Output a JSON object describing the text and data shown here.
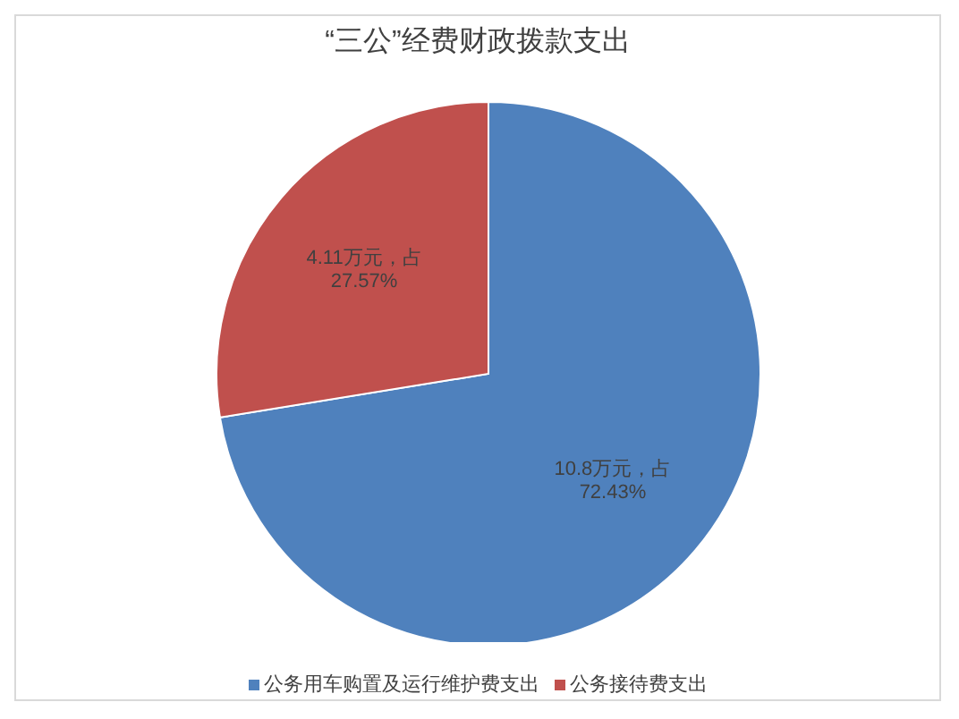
{
  "chart_data": {
    "type": "pie",
    "title": "“三公”经费财政拨款支出",
    "categories": [
      "公务用车购置及运行维护费支出",
      "公务接待费支出"
    ],
    "values": [
      10.8,
      4.11
    ],
    "colors": [
      "#4f81bd",
      "#c0504d"
    ],
    "value_labels": [
      "10.8万元，占 72.43%",
      "4.11万元，占 27.57%"
    ],
    "legend": "bottom"
  }
}
